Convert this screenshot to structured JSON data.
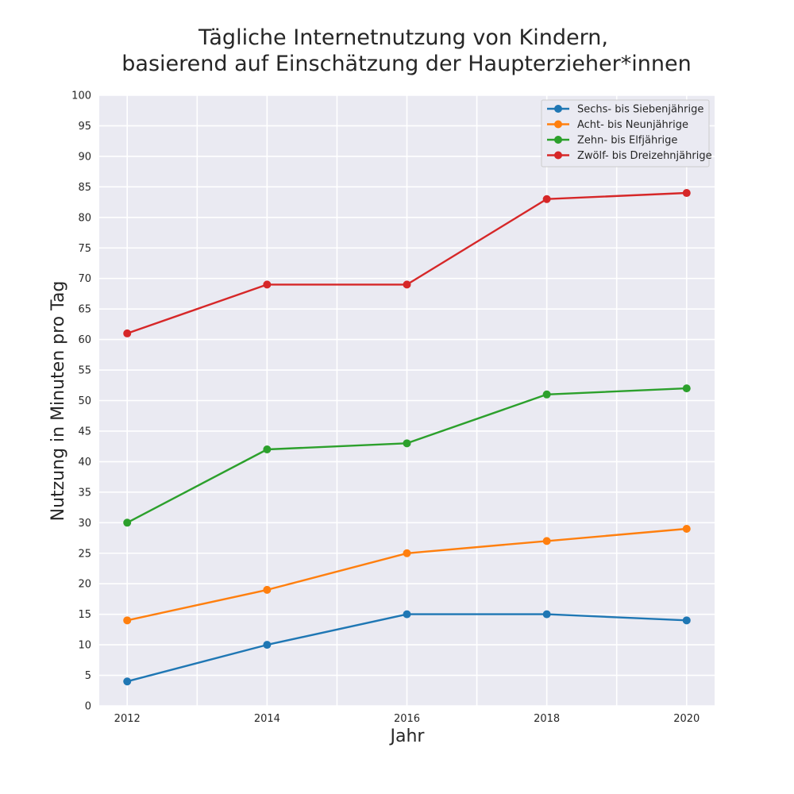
{
  "chart_data": {
    "type": "line",
    "title_line1": "Tägliche Internetnutzung von Kindern,",
    "title_line2": "basierend auf Einschätzung der Haupterzieher*innen",
    "xlabel": "Jahr",
    "ylabel": "Nutzung in Minuten pro Tag",
    "x": [
      2012,
      2014,
      2016,
      2018,
      2020
    ],
    "x_ticks": [
      "2012",
      "2014",
      "2016",
      "2018",
      "2020"
    ],
    "xlim": [
      2011.6,
      2020.4
    ],
    "ylim": [
      0,
      100
    ],
    "y_ticks": [
      "0",
      "5",
      "10",
      "15",
      "20",
      "25",
      "30",
      "35",
      "40",
      "45",
      "50",
      "55",
      "60",
      "65",
      "70",
      "75",
      "80",
      "85",
      "90",
      "95",
      "100"
    ],
    "grid": true,
    "legend_position": "top-right",
    "series": [
      {
        "name": "Sechs- bis Siebenjährige",
        "color": "#1f77b4",
        "values": [
          4,
          10,
          15,
          15,
          14
        ]
      },
      {
        "name": "Acht- bis Neunjährige",
        "color": "#ff7f0e",
        "values": [
          14,
          19,
          25,
          27,
          29
        ]
      },
      {
        "name": "Zehn- bis Elfjährige",
        "color": "#2ca02c",
        "values": [
          30,
          42,
          43,
          51,
          52
        ]
      },
      {
        "name": "Zwölf- bis Dreizehnjährige",
        "color": "#d62728",
        "values": [
          61,
          69,
          69,
          83,
          84
        ]
      }
    ]
  }
}
